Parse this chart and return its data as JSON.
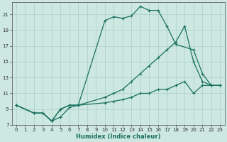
{
  "xlabel": "Humidex (Indice chaleur)",
  "bg_color": "#cce8e0",
  "grid_color": "#aacfc8",
  "line_color": "#1a7060",
  "xlim": [
    -0.5,
    23.5
  ],
  "ylim": [
    7,
    22.5
  ],
  "yticks": [
    7,
    9,
    11,
    13,
    15,
    17,
    19,
    21
  ],
  "xticks": [
    0,
    1,
    2,
    3,
    4,
    5,
    6,
    7,
    8,
    9,
    10,
    11,
    12,
    13,
    14,
    15,
    16,
    17,
    18,
    19,
    20,
    21,
    22,
    23
  ],
  "series": [
    {
      "x": [
        0,
        2,
        3,
        4,
        5,
        6,
        7,
        10,
        11,
        12,
        13,
        14,
        15,
        16,
        17,
        18,
        20,
        21,
        22,
        23
      ],
      "y": [
        9.5,
        8.5,
        8.5,
        7.5,
        8.0,
        9.2,
        9.5,
        20.2,
        20.7,
        20.5,
        20.8,
        22.0,
        21.5,
        21.5,
        19.5,
        17.2,
        16.5,
        13.5,
        12.0,
        12.0
      ]
    },
    {
      "x": [
        0,
        2,
        3,
        4,
        5,
        6,
        7,
        10,
        11,
        12,
        13,
        14,
        15,
        16,
        17,
        18,
        19,
        20,
        21,
        22,
        23
      ],
      "y": [
        9.5,
        8.5,
        8.5,
        7.5,
        9.0,
        9.5,
        9.5,
        10.5,
        11.0,
        11.5,
        12.5,
        13.5,
        14.5,
        15.5,
        16.5,
        17.5,
        19.5,
        15.0,
        12.5,
        12.0,
        12.0
      ]
    },
    {
      "x": [
        0,
        2,
        3,
        4,
        5,
        6,
        7,
        10,
        11,
        12,
        13,
        14,
        15,
        16,
        17,
        18,
        19,
        20,
        21,
        22,
        23
      ],
      "y": [
        9.5,
        8.5,
        8.5,
        7.5,
        9.0,
        9.5,
        9.5,
        9.8,
        10.0,
        10.2,
        10.5,
        11.0,
        11.0,
        11.5,
        11.5,
        12.0,
        12.5,
        11.0,
        12.0,
        12.0,
        12.0
      ]
    }
  ]
}
